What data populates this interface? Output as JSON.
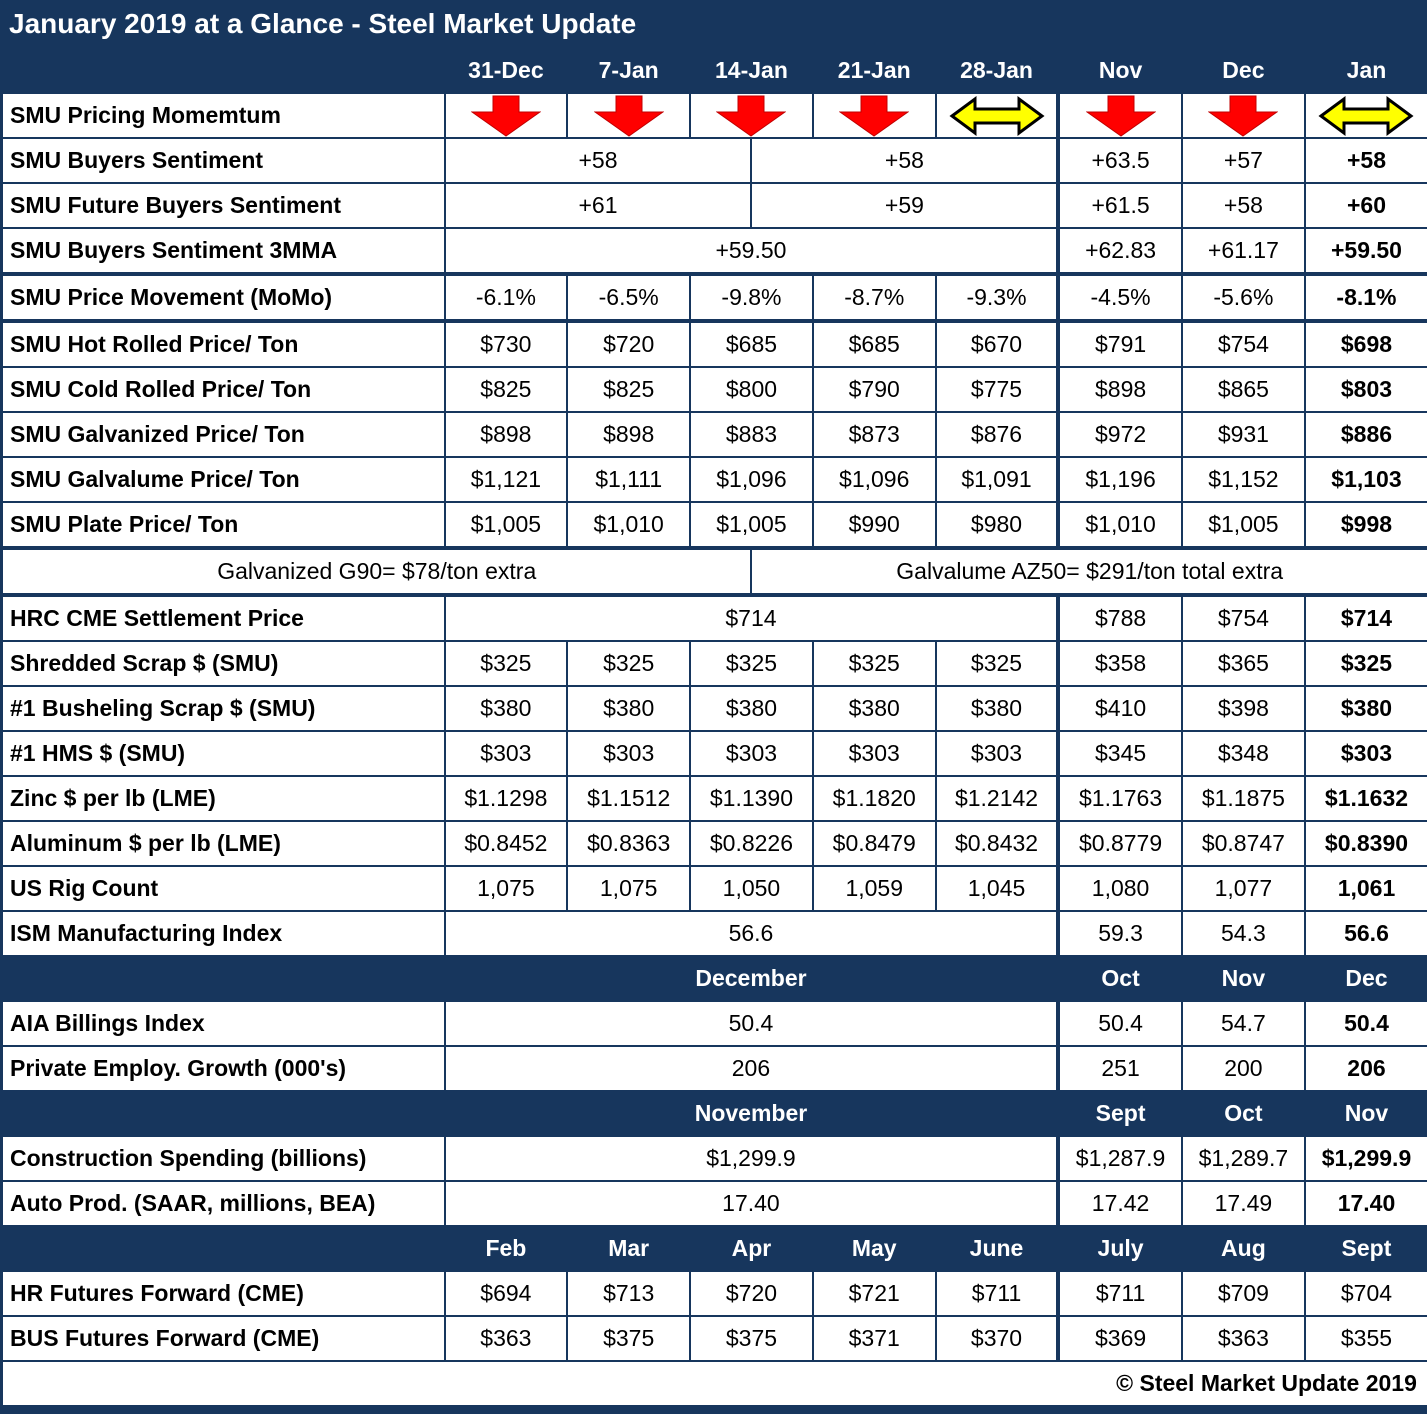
{
  "colors": {
    "navy": "#17365D",
    "arrow_red": "#FF0000",
    "arrow_red_edge": "#C00000",
    "arrow_yellow": "#FFFF00",
    "arrow_yellow_edge": "#000000",
    "text": "#000000",
    "header_text": "#FFFFFF"
  },
  "icons": {
    "momentum_down": "down-arrow",
    "momentum_flat": "left-right-arrow"
  },
  "chart_data": {
    "type": "table",
    "title": "January 2019 at a Glance - Steel Market Update",
    "copyright": "© Steel Market Update 2019",
    "weekly_columns": [
      "31-Dec",
      "7-Jan",
      "14-Jan",
      "21-Jan",
      "28-Jan"
    ],
    "monthly_columns": [
      "Nov",
      "Dec",
      "Jan"
    ],
    "rows": [
      {
        "id": "column-headers",
        "navy": true,
        "label": "",
        "cells": [
          {
            "text": "31-Dec",
            "span": 2
          },
          {
            "text": "7-Jan",
            "span": 2
          },
          {
            "text": "14-Jan",
            "span": 2
          },
          {
            "text": "21-Jan",
            "span": 2
          },
          {
            "text": "28-Jan",
            "span": 2
          },
          {
            "text": "Nov",
            "span": 2
          },
          {
            "text": "Dec",
            "span": 2
          },
          {
            "text": "Jan",
            "span": 2
          }
        ]
      },
      {
        "id": "pricing-momentum",
        "label": "SMU Pricing Momemtum",
        "cells": [
          {
            "icon": "down-arrow",
            "span": 2
          },
          {
            "icon": "down-arrow",
            "span": 2
          },
          {
            "icon": "down-arrow",
            "span": 2
          },
          {
            "icon": "down-arrow",
            "span": 2
          },
          {
            "icon": "left-right-arrow",
            "span": 2
          },
          {
            "icon": "down-arrow",
            "span": 2
          },
          {
            "icon": "down-arrow",
            "span": 2
          },
          {
            "icon": "left-right-arrow",
            "span": 2
          }
        ]
      },
      {
        "id": "buyers-sentiment",
        "label": "SMU Buyers Sentiment",
        "cells": [
          {
            "text": "+58",
            "span": 5
          },
          {
            "text": "+58",
            "span": 5
          },
          {
            "text": "+63.5",
            "span": 2
          },
          {
            "text": "+57",
            "span": 2
          },
          {
            "text": "+58",
            "span": 2,
            "bold": true
          }
        ]
      },
      {
        "id": "future-buyers-sentiment",
        "label": "SMU Future Buyers Sentiment",
        "cells": [
          {
            "text": "+61",
            "span": 5
          },
          {
            "text": "+59",
            "span": 5
          },
          {
            "text": "+61.5",
            "span": 2
          },
          {
            "text": "+58",
            "span": 2
          },
          {
            "text": "+60",
            "span": 2,
            "bold": true
          }
        ]
      },
      {
        "id": "buyers-sentiment-3mma",
        "label": "SMU Buyers Sentiment 3MMA",
        "thick_bottom": true,
        "cells": [
          {
            "text": "+59.50",
            "span": 10
          },
          {
            "text": "+62.83",
            "span": 2
          },
          {
            "text": "+61.17",
            "span": 2
          },
          {
            "text": "+59.50",
            "span": 2,
            "bold": true
          }
        ]
      },
      {
        "id": "price-movement",
        "label": "SMU Price Movement (MoMo)",
        "thick_bottom": true,
        "cells": [
          {
            "text": "-6.1%",
            "span": 2
          },
          {
            "text": "-6.5%",
            "span": 2
          },
          {
            "text": "-9.8%",
            "span": 2
          },
          {
            "text": "-8.7%",
            "span": 2
          },
          {
            "text": "-9.3%",
            "span": 2
          },
          {
            "text": "-4.5%",
            "span": 2
          },
          {
            "text": "-5.6%",
            "span": 2
          },
          {
            "text": "-8.1%",
            "span": 2,
            "bold": true
          }
        ]
      },
      {
        "id": "hot-rolled-price",
        "label": "SMU Hot Rolled Price/ Ton",
        "cells": [
          {
            "text": "$730",
            "span": 2
          },
          {
            "text": "$720",
            "span": 2
          },
          {
            "text": "$685",
            "span": 2
          },
          {
            "text": "$685",
            "span": 2
          },
          {
            "text": "$670",
            "span": 2
          },
          {
            "text": "$791",
            "span": 2
          },
          {
            "text": "$754",
            "span": 2
          },
          {
            "text": "$698",
            "span": 2,
            "bold": true
          }
        ]
      },
      {
        "id": "cold-rolled-price",
        "label": "SMU Cold Rolled Price/ Ton",
        "cells": [
          {
            "text": "$825",
            "span": 2
          },
          {
            "text": "$825",
            "span": 2
          },
          {
            "text": "$800",
            "span": 2
          },
          {
            "text": "$790",
            "span": 2
          },
          {
            "text": "$775",
            "span": 2
          },
          {
            "text": "$898",
            "span": 2
          },
          {
            "text": "$865",
            "span": 2
          },
          {
            "text": "$803",
            "span": 2,
            "bold": true
          }
        ]
      },
      {
        "id": "galvanized-price",
        "label": "SMU Galvanized Price/ Ton",
        "cells": [
          {
            "text": "$898",
            "span": 2
          },
          {
            "text": "$898",
            "span": 2
          },
          {
            "text": "$883",
            "span": 2
          },
          {
            "text": "$873",
            "span": 2
          },
          {
            "text": "$876",
            "span": 2
          },
          {
            "text": "$972",
            "span": 2
          },
          {
            "text": "$931",
            "span": 2
          },
          {
            "text": "$886",
            "span": 2,
            "bold": true
          }
        ]
      },
      {
        "id": "galvalume-price",
        "label": "SMU Galvalume Price/ Ton",
        "cells": [
          {
            "text": "$1,121",
            "span": 2
          },
          {
            "text": "$1,111",
            "span": 2
          },
          {
            "text": "$1,096",
            "span": 2
          },
          {
            "text": "$1,096",
            "span": 2
          },
          {
            "text": "$1,091",
            "span": 2
          },
          {
            "text": "$1,196",
            "span": 2
          },
          {
            "text": "$1,152",
            "span": 2
          },
          {
            "text": "$1,103",
            "span": 2,
            "bold": true
          }
        ]
      },
      {
        "id": "plate-price",
        "label": "SMU Plate Price/ Ton",
        "thick_bottom": true,
        "cells": [
          {
            "text": "$1,005",
            "span": 2
          },
          {
            "text": "$1,010",
            "span": 2
          },
          {
            "text": "$1,005",
            "span": 2
          },
          {
            "text": "$990",
            "span": 2
          },
          {
            "text": "$980",
            "span": 2
          },
          {
            "text": "$1,010",
            "span": 2
          },
          {
            "text": "$1,005",
            "span": 2
          },
          {
            "text": "$998",
            "span": 2,
            "bold": true
          }
        ]
      },
      {
        "id": "extras-note",
        "label": null,
        "thick_bottom": true,
        "cells": [
          {
            "text": "Galvanized G90= $78/ton extra",
            "span": 6
          },
          {
            "text": "Galvalume AZ50= $291/ton total extra",
            "span": 11,
            "noborder": true
          }
        ]
      },
      {
        "id": "hrc-cme-settlement",
        "label": "HRC CME Settlement Price",
        "cells": [
          {
            "text": "$714",
            "span": 10
          },
          {
            "text": "$788",
            "span": 2
          },
          {
            "text": "$754",
            "span": 2
          },
          {
            "text": "$714",
            "span": 2,
            "bold": true
          }
        ]
      },
      {
        "id": "shredded-scrap",
        "label": "Shredded Scrap $ (SMU)",
        "cells": [
          {
            "text": "$325",
            "span": 2
          },
          {
            "text": "$325",
            "span": 2
          },
          {
            "text": "$325",
            "span": 2
          },
          {
            "text": "$325",
            "span": 2
          },
          {
            "text": "$325",
            "span": 2
          },
          {
            "text": "$358",
            "span": 2
          },
          {
            "text": "$365",
            "span": 2
          },
          {
            "text": "$325",
            "span": 2,
            "bold": true
          }
        ]
      },
      {
        "id": "busheling-scrap",
        "label": "#1 Busheling Scrap $ (SMU)",
        "cells": [
          {
            "text": "$380",
            "span": 2
          },
          {
            "text": "$380",
            "span": 2
          },
          {
            "text": "$380",
            "span": 2
          },
          {
            "text": "$380",
            "span": 2
          },
          {
            "text": "$380",
            "span": 2
          },
          {
            "text": "$410",
            "span": 2
          },
          {
            "text": "$398",
            "span": 2
          },
          {
            "text": "$380",
            "span": 2,
            "bold": true
          }
        ]
      },
      {
        "id": "hms-scrap",
        "label": "#1 HMS $ (SMU)",
        "cells": [
          {
            "text": "$303",
            "span": 2
          },
          {
            "text": "$303",
            "span": 2
          },
          {
            "text": "$303",
            "span": 2
          },
          {
            "text": "$303",
            "span": 2
          },
          {
            "text": "$303",
            "span": 2
          },
          {
            "text": "$345",
            "span": 2
          },
          {
            "text": "$348",
            "span": 2
          },
          {
            "text": "$303",
            "span": 2,
            "bold": true
          }
        ]
      },
      {
        "id": "zinc-lme",
        "label": "Zinc $ per lb (LME)",
        "cells": [
          {
            "text": "$1.1298",
            "span": 2
          },
          {
            "text": "$1.1512",
            "span": 2
          },
          {
            "text": "$1.1390",
            "span": 2
          },
          {
            "text": "$1.1820",
            "span": 2
          },
          {
            "text": "$1.2142",
            "span": 2
          },
          {
            "text": "$1.1763",
            "span": 2
          },
          {
            "text": "$1.1875",
            "span": 2
          },
          {
            "text": "$1.1632",
            "span": 2,
            "bold": true
          }
        ]
      },
      {
        "id": "aluminum-lme",
        "label": "Aluminum $ per lb (LME)",
        "cells": [
          {
            "text": "$0.8452",
            "span": 2
          },
          {
            "text": "$0.8363",
            "span": 2
          },
          {
            "text": "$0.8226",
            "span": 2
          },
          {
            "text": "$0.8479",
            "span": 2
          },
          {
            "text": "$0.8432",
            "span": 2
          },
          {
            "text": "$0.8779",
            "span": 2
          },
          {
            "text": "$0.8747",
            "span": 2
          },
          {
            "text": "$0.8390",
            "span": 2,
            "bold": true
          }
        ]
      },
      {
        "id": "us-rig-count",
        "label": "US Rig Count",
        "cells": [
          {
            "text": "1,075",
            "span": 2
          },
          {
            "text": "1,075",
            "span": 2
          },
          {
            "text": "1,050",
            "span": 2
          },
          {
            "text": "1,059",
            "span": 2
          },
          {
            "text": "1,045",
            "span": 2
          },
          {
            "text": "1,080",
            "span": 2
          },
          {
            "text": "1,077",
            "span": 2
          },
          {
            "text": "1,061",
            "span": 2,
            "bold": true
          }
        ]
      },
      {
        "id": "ism-index",
        "label": "ISM Manufacturing Index",
        "cells": [
          {
            "text": "56.6",
            "span": 10
          },
          {
            "text": "59.3",
            "span": 2
          },
          {
            "text": "54.3",
            "span": 2
          },
          {
            "text": "56.6",
            "span": 2,
            "bold": true
          }
        ]
      },
      {
        "id": "month-header-december",
        "navy": true,
        "label": "",
        "cells": [
          {
            "text": "December",
            "span": 10
          },
          {
            "text": "Oct",
            "span": 2
          },
          {
            "text": "Nov",
            "span": 2
          },
          {
            "text": "Dec",
            "span": 2
          }
        ]
      },
      {
        "id": "aia-billings",
        "label": "AIA Billings Index",
        "cells": [
          {
            "text": "50.4",
            "span": 10
          },
          {
            "text": "50.4",
            "span": 2
          },
          {
            "text": "54.7",
            "span": 2
          },
          {
            "text": "50.4",
            "span": 2,
            "bold": true
          }
        ]
      },
      {
        "id": "private-employment",
        "label": "Private Employ. Growth (000's)",
        "cells": [
          {
            "text": "206",
            "span": 10
          },
          {
            "text": "251",
            "span": 2
          },
          {
            "text": "200",
            "span": 2
          },
          {
            "text": "206",
            "span": 2,
            "bold": true
          }
        ]
      },
      {
        "id": "month-header-november",
        "navy": true,
        "label": "",
        "cells": [
          {
            "text": "November",
            "span": 10
          },
          {
            "text": "Sept",
            "span": 2
          },
          {
            "text": "Oct",
            "span": 2
          },
          {
            "text": "Nov",
            "span": 2
          }
        ]
      },
      {
        "id": "construction-spending",
        "label": "Construction Spending (billions)",
        "cells": [
          {
            "text": "$1,299.9",
            "span": 10
          },
          {
            "text": "$1,287.9",
            "span": 2
          },
          {
            "text": "$1,289.7",
            "span": 2
          },
          {
            "text": "$1,299.9",
            "span": 2,
            "bold": true
          }
        ]
      },
      {
        "id": "auto-production",
        "label": "Auto Prod. (SAAR, millions, BEA)",
        "cells": [
          {
            "text": "17.40",
            "span": 10
          },
          {
            "text": "17.42",
            "span": 2
          },
          {
            "text": "17.49",
            "span": 2
          },
          {
            "text": "17.40",
            "span": 2,
            "bold": true
          }
        ]
      },
      {
        "id": "futures-month-header",
        "navy": true,
        "label": "",
        "cells": [
          {
            "text": "Feb",
            "span": 2
          },
          {
            "text": "Mar",
            "span": 2
          },
          {
            "text": "Apr",
            "span": 2
          },
          {
            "text": "May",
            "span": 2
          },
          {
            "text": "June",
            "span": 2
          },
          {
            "text": "July",
            "span": 2
          },
          {
            "text": "Aug",
            "span": 2
          },
          {
            "text": "Sept",
            "span": 2
          }
        ]
      },
      {
        "id": "hr-futures",
        "label": "HR Futures Forward (CME)",
        "cells": [
          {
            "text": "$694",
            "span": 2
          },
          {
            "text": "$713",
            "span": 2
          },
          {
            "text": "$720",
            "span": 2
          },
          {
            "text": "$721",
            "span": 2
          },
          {
            "text": "$711",
            "span": 2
          },
          {
            "text": "$711",
            "span": 2
          },
          {
            "text": "$709",
            "span": 2
          },
          {
            "text": "$704",
            "span": 2
          }
        ]
      },
      {
        "id": "bus-futures",
        "label": "BUS Futures Forward (CME)",
        "cells": [
          {
            "text": "$363",
            "span": 2
          },
          {
            "text": "$375",
            "span": 2
          },
          {
            "text": "$375",
            "span": 2
          },
          {
            "text": "$371",
            "span": 2
          },
          {
            "text": "$370",
            "span": 2
          },
          {
            "text": "$369",
            "span": 2
          },
          {
            "text": "$363",
            "span": 2
          },
          {
            "text": "$355",
            "span": 2
          }
        ]
      },
      {
        "id": "copyright",
        "label": null,
        "footer": true,
        "cells": [
          {
            "text": "© Steel Market Update 2019",
            "span": 17,
            "bold": true,
            "align": "right"
          }
        ]
      }
    ]
  }
}
